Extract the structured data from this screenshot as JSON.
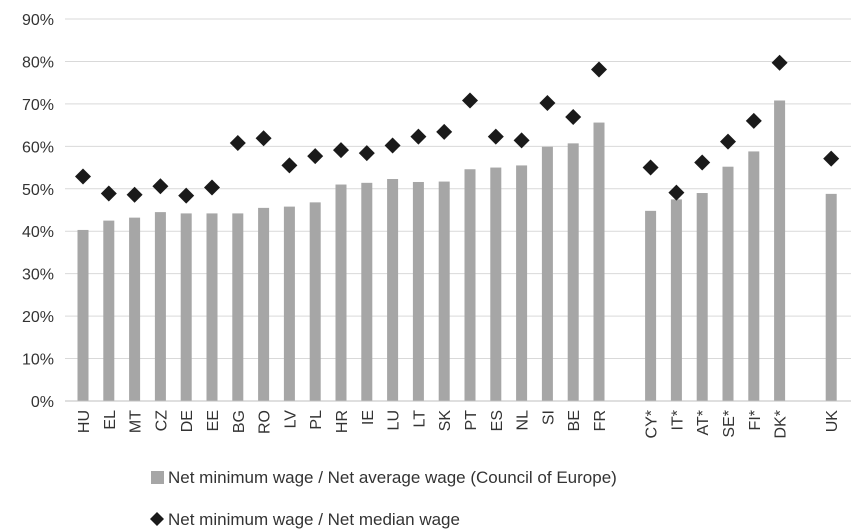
{
  "chart_data": {
    "type": "bar",
    "categories": [
      "HU",
      "EL",
      "MT",
      "CZ",
      "DE",
      "EE",
      "BG",
      "RO",
      "LV",
      "PL",
      "HR",
      "IE",
      "LU",
      "LT",
      "SK",
      "PT",
      "ES",
      "NL",
      "SI",
      "BE",
      "FR",
      "CY*",
      "IT*",
      "AT*",
      "SE*",
      "FI*",
      "DK*",
      "UK"
    ],
    "series": [
      {
        "name": "Net minimum wage / Net average wage (Council of Europe)",
        "kind": "bar",
        "color": "#a6a6a6",
        "values": [
          40.3,
          42.5,
          43.2,
          44.5,
          44.2,
          44.2,
          44.2,
          45.5,
          45.8,
          46.8,
          51.0,
          51.4,
          52.3,
          51.6,
          51.7,
          54.6,
          55.0,
          55.5,
          59.9,
          60.7,
          65.6,
          44.8,
          47.5,
          49.0,
          55.2,
          58.8,
          70.8,
          48.8
        ]
      },
      {
        "name": "Net minimum wage / Net median wage",
        "kind": "marker",
        "marker": "diamond",
        "color": "#1a1a1a",
        "values": [
          52.9,
          48.9,
          48.6,
          50.6,
          48.4,
          50.3,
          60.8,
          61.9,
          55.5,
          57.7,
          59.1,
          58.4,
          60.2,
          62.3,
          63.4,
          70.8,
          62.3,
          61.4,
          70.2,
          66.9,
          78.1,
          55.0,
          49.1,
          56.2,
          61.1,
          66.0,
          79.7,
          57.1
        ]
      }
    ],
    "groups": [
      {
        "start": 0,
        "end": 20
      },
      {
        "start": 21,
        "end": 26
      },
      {
        "start": 27,
        "end": 27
      }
    ],
    "yticks": [
      "0%",
      "10%",
      "20%",
      "30%",
      "40%",
      "50%",
      "60%",
      "70%",
      "80%",
      "90%"
    ],
    "ylim": [
      0,
      90
    ],
    "grid": true,
    "legend_position": "bottom",
    "title": "",
    "xlabel": "",
    "ylabel": ""
  }
}
